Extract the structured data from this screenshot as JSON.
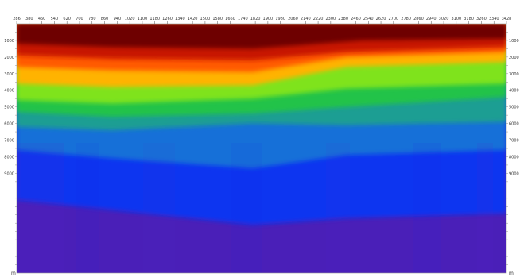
{
  "chart_data": {
    "type": "heatmap",
    "title": "",
    "xlabel": "",
    "ylabel": "",
    "x_ticks": [
      "286",
      "380",
      "460",
      "540",
      "620",
      "700",
      "780",
      "860",
      "940",
      "1020",
      "1100",
      "1180",
      "1260",
      "1340",
      "1420",
      "1500",
      "1580",
      "1660",
      "1740",
      "1820",
      "1900",
      "1980",
      "2060",
      "2140",
      "2220",
      "2300",
      "2380",
      "2460",
      "2540",
      "2620",
      "2700",
      "2780",
      "2860",
      "2940",
      "3020",
      "3100",
      "3180",
      "3260",
      "3340",
      "3428"
    ],
    "x_range": [
      286,
      3428
    ],
    "y_ticks": [
      "1000",
      "2000",
      "3000",
      "4000",
      "5000",
      "6000",
      "7000",
      "8000",
      "9000"
    ],
    "y_range": [
      0,
      15000
    ],
    "y_unit": "m",
    "x_unit": "m",
    "colormap": [
      "#6e0000",
      "#c81800",
      "#ff5a00",
      "#ffb300",
      "#fff04a",
      "#7fe31d",
      "#23c34a",
      "#1a9e93",
      "#1570d8",
      "#0b35f0",
      "#2a19d6",
      "#4a1fb8"
    ],
    "layers": [
      {
        "name": "deep-red",
        "color": "#6e0000",
        "depth_at_x": [
          [
            286,
            1200
          ],
          [
            900,
            1400
          ],
          [
            1800,
            1500
          ],
          [
            2500,
            1000
          ],
          [
            3428,
            900
          ]
        ]
      },
      {
        "name": "red",
        "color": "#c81800",
        "depth_at_x": [
          [
            286,
            1900
          ],
          [
            900,
            2100
          ],
          [
            1800,
            2200
          ],
          [
            2400,
            1700
          ],
          [
            3428,
            1400
          ]
        ]
      },
      {
        "name": "orange",
        "color": "#ff5a00",
        "depth_at_x": [
          [
            286,
            2600
          ],
          [
            900,
            2800
          ],
          [
            1800,
            2900
          ],
          [
            2400,
            2000
          ],
          [
            3428,
            1700
          ]
        ]
      },
      {
        "name": "yellow",
        "color": "#ffb300",
        "depth_at_x": [
          [
            286,
            3600
          ],
          [
            900,
            3800
          ],
          [
            1800,
            3700
          ],
          [
            2400,
            2600
          ],
          [
            3428,
            2300
          ]
        ]
      },
      {
        "name": "light-green",
        "color": "#7fe31d",
        "depth_at_x": [
          [
            286,
            4600
          ],
          [
            900,
            4800
          ],
          [
            1800,
            4500
          ],
          [
            2400,
            3900
          ],
          [
            3428,
            3600
          ]
        ]
      },
      {
        "name": "green",
        "color": "#23c34a",
        "depth_at_x": [
          [
            286,
            5300
          ],
          [
            900,
            5600
          ],
          [
            1800,
            5400
          ],
          [
            2400,
            5000
          ],
          [
            3428,
            4400
          ]
        ]
      },
      {
        "name": "teal",
        "color": "#1a9e93",
        "depth_at_x": [
          [
            286,
            6200
          ],
          [
            900,
            6400
          ],
          [
            1800,
            6000
          ],
          [
            2400,
            6100
          ],
          [
            3428,
            5900
          ]
        ]
      },
      {
        "name": "blue",
        "color": "#1570d8",
        "depth_at_x": [
          [
            286,
            7600
          ],
          [
            900,
            8100
          ],
          [
            1800,
            8700
          ],
          [
            2400,
            7900
          ],
          [
            3428,
            7600
          ]
        ]
      },
      {
        "name": "deep-blue",
        "color": "#0b35f0",
        "depth_at_x": [
          [
            286,
            10600
          ],
          [
            900,
            11200
          ],
          [
            1800,
            12100
          ],
          [
            2400,
            11700
          ],
          [
            3428,
            11400
          ]
        ]
      },
      {
        "name": "purple",
        "color": "#4a1fb8",
        "depth_at_x": [
          [
            286,
            15000
          ],
          [
            3428,
            15000
          ]
        ]
      }
    ]
  }
}
